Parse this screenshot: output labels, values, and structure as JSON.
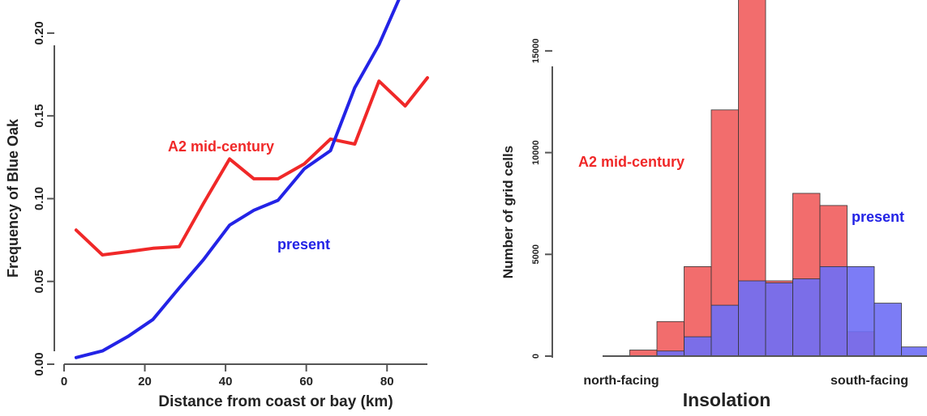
{
  "chart_data": [
    {
      "type": "line",
      "xlabel": "Distance from coast or bay (km)",
      "ylabel": "Frequency of Blue Oak",
      "xlim": [
        0,
        90
      ],
      "ylim": [
        0,
        0.22
      ],
      "x_ticks": [
        0,
        20,
        40,
        60,
        80
      ],
      "x_tick_labels": [
        "0",
        "20",
        "40",
        "60",
        "80"
      ],
      "y_ticks": [
        0.0,
        0.05,
        0.1,
        0.15,
        0.2
      ],
      "y_tick_labels": [
        "0.00",
        "0.05",
        "0.10",
        "0.15",
        "0.20"
      ],
      "grid": false,
      "series": [
        {
          "name": "A2 mid-century",
          "color": "#f02828",
          "x": [
            3,
            9.5,
            16,
            22,
            28.5,
            34.5,
            41,
            47,
            53,
            59.5,
            66,
            72,
            78,
            84.5,
            90
          ],
          "values": [
            0.081,
            0.066,
            0.068,
            0.07,
            0.071,
            0.097,
            0.124,
            0.112,
            0.112,
            0.121,
            0.136,
            0.133,
            0.171,
            0.156,
            0.173
          ]
        },
        {
          "name": "present",
          "color": "#2323e6",
          "x": [
            3,
            9.5,
            16,
            22,
            28.5,
            34.5,
            41,
            47,
            53,
            59.5,
            66,
            72,
            78,
            84.5,
            90
          ],
          "values": [
            0.004,
            0.008,
            0.017,
            0.027,
            0.046,
            0.063,
            0.084,
            0.093,
            0.099,
            0.118,
            0.129,
            0.167,
            0.193,
            0.229,
            0.228
          ]
        }
      ],
      "annotations": [
        {
          "text": "A2 mid-century",
          "color": "#f02828"
        },
        {
          "text": "present",
          "color": "#2323e6"
        }
      ]
    },
    {
      "type": "bar",
      "subtype": "overlaid-histogram",
      "xlabel": "Insolation",
      "ylabel": "Number of grid cells",
      "x_end_labels": [
        "north-facing",
        "south-facing"
      ],
      "ylim": [
        0,
        17500
      ],
      "y_ticks": [
        0,
        5000,
        10000,
        15000
      ],
      "y_tick_labels": [
        "0",
        "5000",
        "10000",
        "15000"
      ],
      "grid": false,
      "bins": 12,
      "series": [
        {
          "name": "A2 mid-century",
          "color": "#f26d6d",
          "values": [
            0,
            300,
            1700,
            4400,
            12100,
            17700,
            3700,
            8000,
            7400,
            1200,
            0,
            0
          ]
        },
        {
          "name": "present",
          "color": "#6e6ef5",
          "values": [
            0,
            0,
            250,
            950,
            2500,
            3700,
            3600,
            3800,
            4400,
            4400,
            2600,
            450
          ]
        }
      ],
      "annotations": [
        {
          "text": "A2 mid-century",
          "color": "#f02828"
        },
        {
          "text": "present",
          "color": "#2323e6"
        }
      ]
    }
  ]
}
